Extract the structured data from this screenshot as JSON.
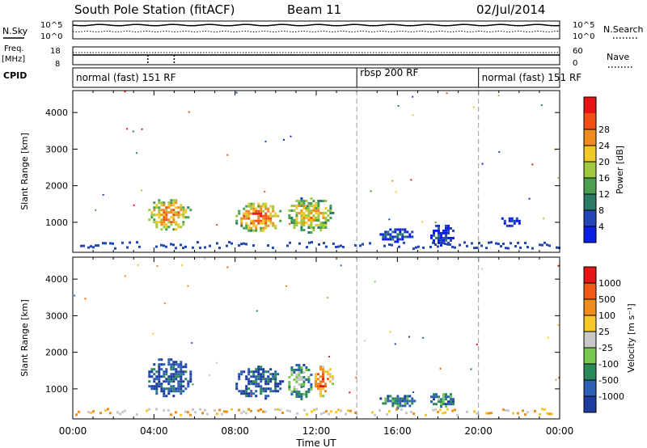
{
  "header": {
    "title": "South Pole Station (fitACF)",
    "beam": "Beam 11",
    "date": "02/Jul/2014"
  },
  "status_panels": {
    "nsky_label": "N.Sky",
    "nsky_ticks": [
      "10^5",
      "10^0"
    ],
    "nsearch_label": "N.Search",
    "nsearch_ticks": [
      "10^5",
      "10^0"
    ],
    "freq_label": "Freq.",
    "freq_unit": "[MHz]",
    "freq_ticks": [
      "18",
      "8"
    ],
    "nave_label": "Nave",
    "nave_ticks": [
      "60",
      "0"
    ],
    "cpid_label": "CPID"
  },
  "cpid_segments": [
    {
      "label": "normal (fast) 151 RF",
      "start": 0,
      "end": 14
    },
    {
      "label": "rbsp 200 RF",
      "start": 14,
      "end": 20
    },
    {
      "label": "normal (fast) 151 RF",
      "start": 20,
      "end": 24
    }
  ],
  "chart_data": [
    {
      "type": "heatmap",
      "panel": "power",
      "ylabel": "Slant Range [km]",
      "xlabel": "",
      "ylim": [
        180,
        4600
      ],
      "yticks": [
        1000,
        2000,
        3000,
        4000
      ],
      "xlim": [
        0,
        24
      ],
      "colorbar_label": "Power [dB]",
      "colorbar_ticks": [
        4,
        8,
        12,
        16,
        20,
        24,
        28
      ],
      "colorbar_colors": [
        "#0a1ee6",
        "#2346b4",
        "#2a7a64",
        "#4aa050",
        "#a0c840",
        "#f0c828",
        "#f08c1e",
        "#f05014",
        "#e61414"
      ],
      "echo_regions": [
        {
          "t0": 3.6,
          "t1": 5.8,
          "r0": 800,
          "r1": 1700,
          "level": 0.75
        },
        {
          "t0": 7.9,
          "t1": 10.3,
          "r0": 750,
          "r1": 1600,
          "level": 0.8
        },
        {
          "t0": 10.5,
          "t1": 12.8,
          "r0": 750,
          "r1": 1750,
          "level": 0.65
        },
        {
          "t0": 15.0,
          "t1": 16.8,
          "r0": 500,
          "r1": 900,
          "level": 0.15
        },
        {
          "t0": 17.5,
          "t1": 18.8,
          "r0": 400,
          "r1": 1000,
          "level": 0.1
        },
        {
          "t0": 21.0,
          "t1": 22.0,
          "r0": 900,
          "r1": 1200,
          "level": 0.1
        }
      ]
    },
    {
      "type": "heatmap",
      "panel": "velocity",
      "ylabel": "Slant Range [km]",
      "xlabel": "Time UT",
      "ylim": [
        180,
        4600
      ],
      "yticks": [
        1000,
        2000,
        3000,
        4000
      ],
      "xlim": [
        0,
        24
      ],
      "xtick_labels": [
        "00:00",
        "04:00",
        "08:00",
        "12:00",
        "16:00",
        "20:00",
        "00:00"
      ],
      "colorbar_label": "Velocity [m s⁻¹]",
      "colorbar_ticks": [
        "1000",
        "500",
        "100",
        "25",
        "-25",
        "-100",
        "-500",
        "-1000"
      ],
      "colorbar_colors": [
        "#1e3ca0",
        "#2f5fb4",
        "#2a8a5a",
        "#78c850",
        "#c8c8c8",
        "#f5c828",
        "#f08c1e",
        "#f05a14",
        "#e61414"
      ],
      "echo_regions": [
        {
          "t0": 3.6,
          "t1": 5.8,
          "r0": 800,
          "r1": 1900,
          "level": 0.15
        },
        {
          "t0": 7.9,
          "t1": 10.3,
          "r0": 750,
          "r1": 1700,
          "level": 0.15
        },
        {
          "t0": 10.5,
          "t1": 11.8,
          "r0": 750,
          "r1": 1750,
          "level": 0.4
        },
        {
          "t0": 11.8,
          "t1": 12.8,
          "r0": 800,
          "r1": 1700,
          "level": 0.9
        },
        {
          "t0": 15.0,
          "t1": 16.8,
          "r0": 500,
          "r1": 900,
          "level": 0.25
        },
        {
          "t0": 17.5,
          "t1": 18.8,
          "r0": 500,
          "r1": 950,
          "level": 0.3
        }
      ]
    }
  ]
}
